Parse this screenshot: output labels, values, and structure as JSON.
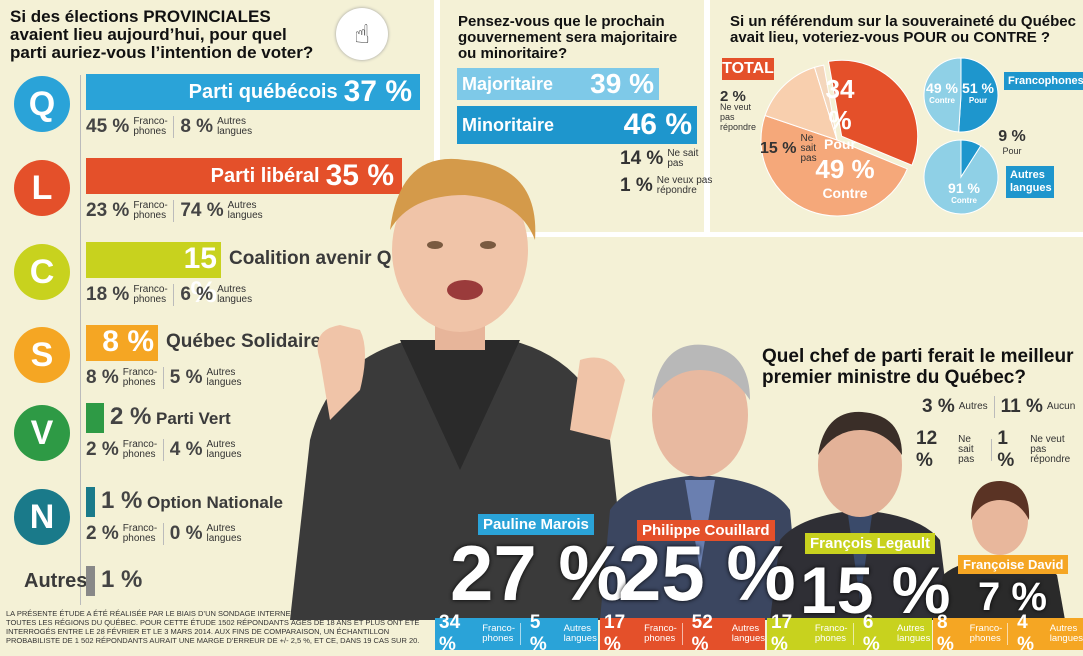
{
  "q1": {
    "title_lines": [
      "Si des élections PROVINCIALES",
      "avaient lieu aujourd’hui, pour quel",
      "parti auriez-vous l’intention de voter?"
    ]
  },
  "chart_data": [
    {
      "type": "bar",
      "title": "Si des élections PROVINCIALES avaient lieu aujourd’hui, pour quel parti auriez-vous l’intention de voter?",
      "categories": [
        "Parti québécois",
        "Parti libéral",
        "Coalition avenir Québec",
        "Québec Solidaire",
        "Parti Vert",
        "Option Nationale",
        "Autres"
      ],
      "series": [
        {
          "values": [
            37,
            35,
            15,
            8,
            2,
            1,
            1
          ]
        }
      ],
      "francophones": [
        45,
        23,
        18,
        8,
        2,
        2
      ],
      "autres_langues": [
        8,
        74,
        6,
        5,
        4,
        0
      ],
      "colors": [
        "#2aa3d8",
        "#e4502a",
        "#c8d21e",
        "#f5a623",
        "#2e9a45",
        "#1a7a8a",
        "#888888"
      ]
    },
    {
      "type": "bar",
      "title": "Pensez-vous que le prochain gouvernement sera majoritaire ou minoritaire?",
      "categories": [
        "Majoritaire",
        "Minoritaire",
        "Ne sait pas",
        "Ne veux pas répondre"
      ],
      "values": [
        39,
        46,
        14,
        1
      ]
    },
    {
      "type": "pie",
      "title": "Si un référendum sur la souveraineté du Québec avait lieu, voteriez-vous POUR ou CONTRE ?",
      "total": {
        "categories": [
          "Pour",
          "Contre",
          "Ne sait pas",
          "Ne veut pas répondre"
        ],
        "values": [
          34,
          49,
          15,
          2
        ]
      },
      "francophones": {
        "categories": [
          "Pour",
          "Contre"
        ],
        "values": [
          51,
          49
        ]
      },
      "autres_langues": {
        "categories": [
          "Pour",
          "Contre"
        ],
        "values": [
          9,
          91
        ]
      }
    },
    {
      "type": "bar",
      "title": "Quel chef de parti ferait le meilleur premier ministre du Québec?",
      "categories": [
        "Pauline Marois",
        "Philippe Couillard",
        "François Legault",
        "Françoise David"
      ],
      "values": [
        27,
        25,
        15,
        7
      ],
      "francophones": [
        34,
        17,
        17,
        8
      ],
      "autres_langues": [
        5,
        52,
        6,
        4
      ],
      "others": {
        "Autres": 3,
        "Aucun": 11,
        "Ne sait pas": 12,
        "Ne veut pas répondre": 1
      }
    }
  ],
  "parties": [
    {
      "name": "Parti québécois",
      "pct": "37 %",
      "fr": "45 %",
      "al": "8 %",
      "logo": "Q",
      "color": "#2aa3d8"
    },
    {
      "name": "Parti libéral",
      "pct": "35 %",
      "fr": "23 %",
      "al": "74 %",
      "logo": "L",
      "color": "#e4502a"
    },
    {
      "name": "Coalition avenir Québec",
      "pct": "15 %",
      "fr": "18 %",
      "al": "6 %",
      "logo": "C",
      "color": "#c8d21e"
    },
    {
      "name": "Québec Solidaire",
      "pct": "8 %",
      "fr": "8 %",
      "al": "5 %",
      "logo": "S",
      "color": "#f5a623"
    },
    {
      "name": "Parti Vert",
      "pct": "2 %",
      "fr": "2 %",
      "al": "4 %",
      "logo": "V",
      "color": "#2e9a45"
    },
    {
      "name": "Option Nationale",
      "pct": "1 %",
      "fr": "2 %",
      "al": "0 %",
      "logo": "N",
      "color": "#1a7a8a"
    },
    {
      "name": "Autres",
      "pct": "1 %",
      "color": "#888888"
    }
  ],
  "labels": {
    "francophones": "Franco-phones",
    "autres_langues": "Autres langues"
  },
  "q2": {
    "title_lines": [
      "Pensez-vous que le prochain",
      "gouvernement sera majoritaire",
      "ou minoritaire?"
    ],
    "maj": "Majoritaire",
    "maj_pct": "39 %",
    "min": "Minoritaire",
    "min_pct": "46 %",
    "nsp_pct": "14 %",
    "nsp": "Ne sait pas",
    "nvp_pct": "1 %",
    "nvp": "Ne veux pas répondre"
  },
  "q3": {
    "title_lines": [
      "Si un référendum sur la souveraineté du Québec",
      "avait lieu, voteriez-vous POUR ou CONTRE ?"
    ],
    "total": "TOTAL",
    "pour_pct": "34 %",
    "pour": "Pour",
    "contre_pct": "49 %",
    "contre": "Contre",
    "nsp_pct": "15 %",
    "nsp": "Ne sait pas",
    "nvp_pct": "2 %",
    "nvp": "Ne veut pas répondre",
    "fr_contre": "49 %",
    "fr_pour": "51 %",
    "francophones": "Francophones",
    "al_pour": "9 %",
    "al_contre": "91 %",
    "autres_langues": "Autres langues",
    "contre_small": "Contre",
    "pour_small": "Pour"
  },
  "q4": {
    "title_lines": [
      "Quel chef de parti ferait le meilleur",
      "premier ministre du Québec?"
    ],
    "autres_pct": "3 %",
    "autres": "Autres",
    "aucun_pct": "11 %",
    "aucun": "Aucun",
    "nsp_pct": "12 %",
    "nsp": "Ne sait pas",
    "nvp_pct": "1 %",
    "nvp": "Ne veut pas répondre",
    "leaders": [
      {
        "name": "Pauline Marois",
        "pct": "27 %",
        "fr": "34 %",
        "al": "5 %",
        "color": "#2aa3d8"
      },
      {
        "name": "Philippe Couillard",
        "pct": "25 %",
        "fr": "17 %",
        "al": "52 %",
        "color": "#e4502a"
      },
      {
        "name": "François Legault",
        "pct": "15 %",
        "fr": "17 %",
        "al": "6 %",
        "color": "#c8d21e"
      },
      {
        "name": "Françoise David",
        "pct": "7 %",
        "fr": "8 %",
        "al": "4 %",
        "color": "#f5a623"
      }
    ]
  },
  "footnote": "LA PRÉSENTE ÉTUDE A ÉTÉ RÉALISÉE PAR LE BIAIS D’UN SONDAGE INTERNET AUPRÈS DU GRAND PUBLIC DANS TOUTES LES RÉGIONS DU QUÉBEC. POUR CETTE ÉTUDE 1502 RÉPONDANTS ÂGÉS DE 18 ANS ET PLUS ONT ÉTÉ INTERROGÉS ENTRE LE 28 FÉVRIER ET LE 3 MARS 2014. AUX FINS DE COMPARAISON, UN ÉCHANTILLON PROBABILISTE DE 1 502 RÉPONDANTS AURAIT UNE MARGE D’ERREUR DE +/- 2,5 %, ET CE, DANS 19 CAS SUR 20."
}
